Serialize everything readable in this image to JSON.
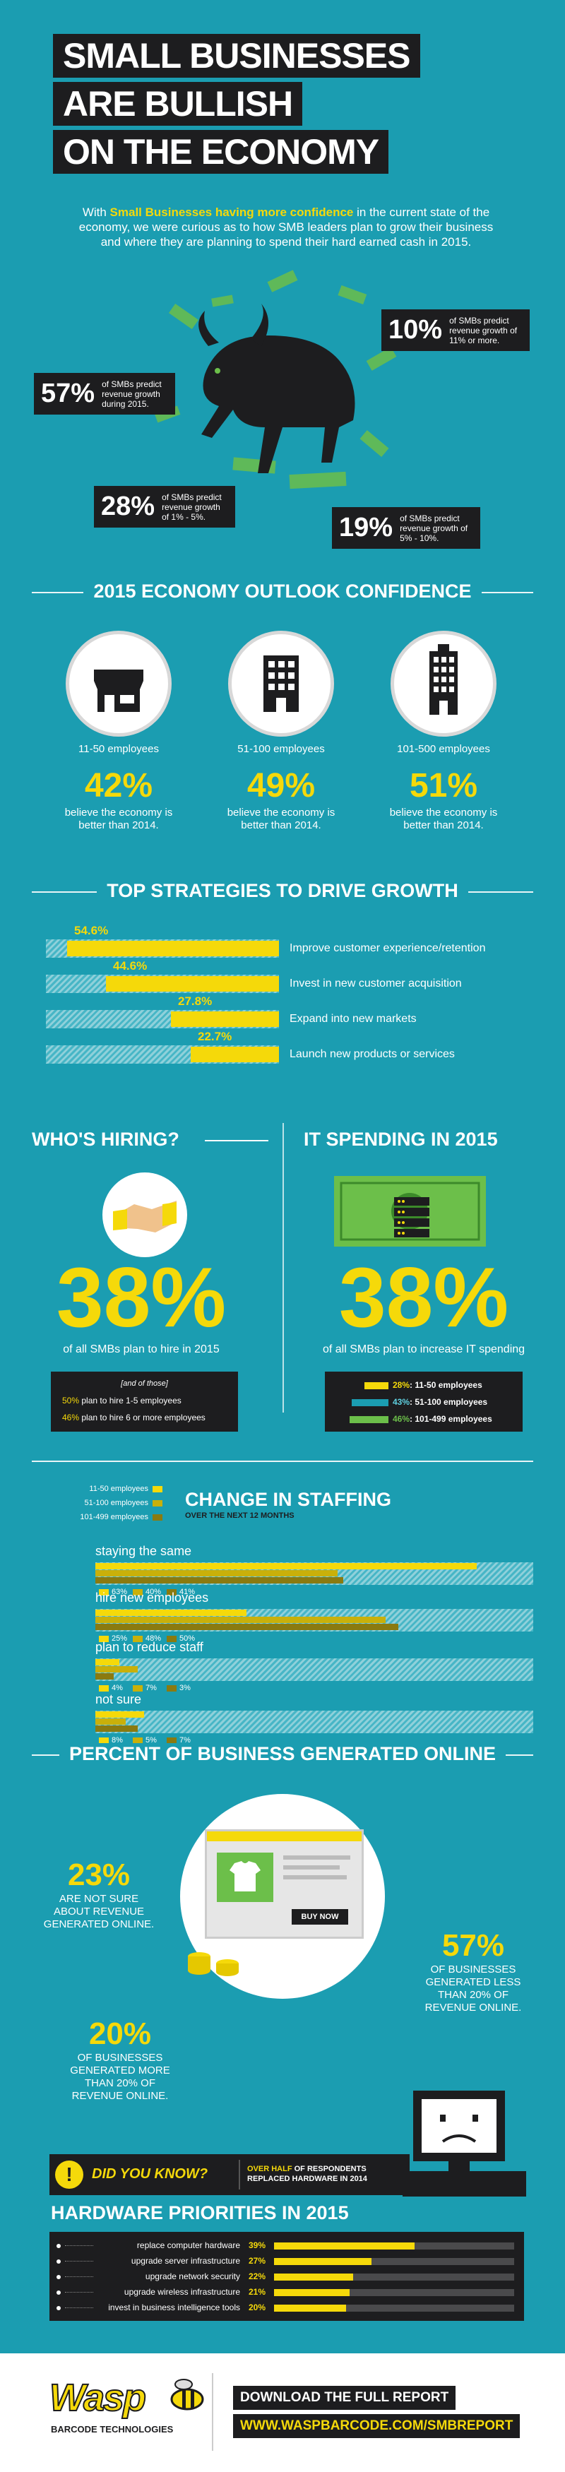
{
  "header": {
    "title_lines": [
      "SMALL BUSINESSES",
      "ARE BULLISH",
      "ON THE ECONOMY"
    ],
    "intro_pre": "With ",
    "intro_highlight": "Small Businesses having more confidence",
    "intro_post": " in the current state of the economy, we were curious as to how SMB leaders plan to grow their business and where they are planning to spend their hard earned cash in 2015."
  },
  "revenue_predictions": [
    {
      "pct": "10%",
      "desc": "of SMBs predict revenue growth of 11% or more."
    },
    {
      "pct": "57%",
      "desc": "of SMBs predict revenue growth during 2015."
    },
    {
      "pct": "28%",
      "desc": "of SMBs predict revenue growth of 1% - 5%."
    },
    {
      "pct": "19%",
      "desc": "of SMBs predict revenue growth of 5% - 10%."
    }
  ],
  "outlook": {
    "title": "2015 ECONOMY OUTLOOK CONFIDENCE",
    "groups": [
      {
        "label": "11-50 employees",
        "pct": "42%",
        "desc": "believe the economy is better than 2014.",
        "icon": "storefront-icon"
      },
      {
        "label": "51-100 employees",
        "pct": "49%",
        "desc": "believe the economy is better than 2014.",
        "icon": "office-building-icon"
      },
      {
        "label": "101-500 employees",
        "pct": "51%",
        "desc": "believe the economy is better than 2014.",
        "icon": "tall-building-icon"
      }
    ]
  },
  "strategies": {
    "title": "TOP STRATEGIES TO DRIVE GROWTH",
    "items": [
      {
        "value": 54.6,
        "value_label": "54.6%",
        "label": "Improve customer experience/retention"
      },
      {
        "value": 44.6,
        "value_label": "44.6%",
        "label": "Invest in new customer acquisition"
      },
      {
        "value": 27.8,
        "value_label": "27.8%",
        "label": "Expand into new markets"
      },
      {
        "value": 22.7,
        "value_label": "22.7%",
        "label": "Launch new products or services"
      }
    ]
  },
  "hiring": {
    "title": "WHO'S HIRING?",
    "pct": "38%",
    "desc": "of all SMBs plan to hire in 2015",
    "box_title": "[and of those]",
    "rows": [
      {
        "pct": "50%",
        "text": " plan to hire 1-5 employees"
      },
      {
        "pct": "46%",
        "text": " plan to hire 6 or more employees"
      }
    ]
  },
  "it_spending": {
    "title": "IT SPENDING IN 2015",
    "pct": "38%",
    "desc": "of all SMBs plan to increase IT spending",
    "rows": [
      {
        "value": 28,
        "pct": "28%",
        "label": ": 11-50 employees",
        "color": "#f5d90a"
      },
      {
        "value": 43,
        "pct": "43%",
        "label": ": 51-100 employees",
        "color": "#1b9db1"
      },
      {
        "value": 46,
        "pct": "46%",
        "label": ": 101-499 employees",
        "color": "#6cbf4a"
      }
    ]
  },
  "staffing": {
    "title": "CHANGE IN STAFFING",
    "subtitle": "OVER THE NEXT 12 MONTHS",
    "legend": [
      {
        "label": "11-50 employees",
        "color": "#f5d90a"
      },
      {
        "label": "51-100 employees",
        "color": "#c9b00a"
      },
      {
        "label": "101-499 employees",
        "color": "#8a7a10"
      }
    ],
    "groups": [
      {
        "label": "staying the same",
        "values": [
          63,
          40,
          41
        ],
        "labels": [
          "63%",
          "40%",
          "41%"
        ]
      },
      {
        "label": "hire new employees",
        "values": [
          25,
          48,
          50
        ],
        "labels": [
          "25%",
          "48%",
          "50%"
        ]
      },
      {
        "label": "plan to reduce staff",
        "values": [
          4,
          7,
          3
        ],
        "labels": [
          "4%",
          "7%",
          "3%"
        ]
      },
      {
        "label": "not sure",
        "values": [
          8,
          5,
          7
        ],
        "labels": [
          "8%",
          "5%",
          "7%"
        ]
      }
    ]
  },
  "online": {
    "title": "PERCENT OF BUSINESS GENERATED ONLINE",
    "stats": [
      {
        "pct": "23%",
        "text": "ARE NOT SURE ABOUT REVENUE GENERATED ONLINE."
      },
      {
        "pct": "57%",
        "text": "OF BUSINESSES GENERATED LESS THAN 20% OF REVENUE ONLINE."
      },
      {
        "pct": "20%",
        "text": "OF BUSINESSES GENERATED MORE THAN 20% OF REVENUE ONLINE."
      }
    ],
    "buy_now": "BUY NOW"
  },
  "did_you_know": {
    "label": "DID YOU KNOW?",
    "line1_strong": "OVER HALF",
    "line1_rest": " OF RESPONDENTS",
    "line2": "REPLACED HARDWARE IN 2014"
  },
  "hardware": {
    "title": "HARDWARE PRIORITIES IN 2015",
    "items": [
      {
        "label": "replace computer hardware",
        "value": 39,
        "value_label": "39%"
      },
      {
        "label": "upgrade server infrastructure",
        "value": 27,
        "value_label": "27%"
      },
      {
        "label": "upgrade network security",
        "value": 22,
        "value_label": "22%"
      },
      {
        "label": "upgrade wireless infrastructure",
        "value": 21,
        "value_label": "21%"
      },
      {
        "label": "invest in business intelligence tools",
        "value": 20,
        "value_label": "20%"
      }
    ]
  },
  "footer": {
    "brand": "Wasp",
    "brand_sub": "BARCODE TECHNOLOGIES",
    "cta": "DOWNLOAD THE FULL REPORT",
    "url": "WWW.WASPBARCODE.COM/SMBREPORT"
  },
  "colors": {
    "teal": "#1b9db1",
    "yellow": "#f5d90a",
    "dark": "#1d1d1f"
  }
}
